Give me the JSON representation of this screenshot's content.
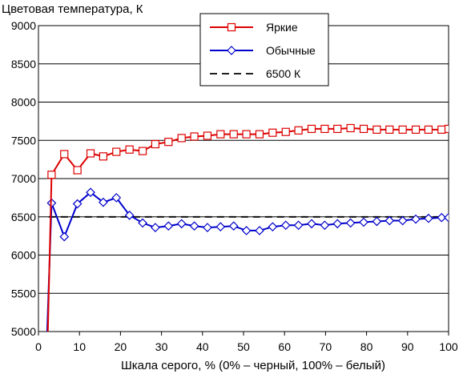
{
  "chart_data": {
    "type": "line",
    "title": "",
    "ylabel": "Цветовая температура, К",
    "xlabel": "Шкала серого, % (0% – черный, 100% – белый)",
    "xlim": [
      0,
      100
    ],
    "ylim": [
      5000,
      9000
    ],
    "x_ticks": [
      0,
      10,
      20,
      30,
      40,
      50,
      60,
      70,
      80,
      90,
      100
    ],
    "y_ticks": [
      5000,
      5500,
      6000,
      6500,
      7000,
      7500,
      8000,
      8500,
      9000
    ],
    "grid": "horizontal",
    "legend_position": "top-center",
    "series": [
      {
        "name": "Яркие",
        "color": "#dd0000",
        "marker": "square",
        "points": [
          [
            2.2,
            4800
          ],
          [
            3.2,
            7050
          ],
          [
            6.3,
            7320
          ],
          [
            9.5,
            7110
          ],
          [
            12.7,
            7330
          ],
          [
            15.8,
            7290
          ],
          [
            19.0,
            7350
          ],
          [
            22.2,
            7380
          ],
          [
            25.4,
            7360
          ],
          [
            28.5,
            7450
          ],
          [
            31.7,
            7480
          ],
          [
            34.9,
            7530
          ],
          [
            38.0,
            7550
          ],
          [
            41.2,
            7560
          ],
          [
            44.4,
            7580
          ],
          [
            47.6,
            7580
          ],
          [
            50.7,
            7580
          ],
          [
            53.9,
            7580
          ],
          [
            57.1,
            7600
          ],
          [
            60.3,
            7610
          ],
          [
            63.4,
            7630
          ],
          [
            66.6,
            7650
          ],
          [
            69.8,
            7650
          ],
          [
            72.9,
            7650
          ],
          [
            76.1,
            7660
          ],
          [
            79.3,
            7650
          ],
          [
            82.5,
            7640
          ],
          [
            85.6,
            7640
          ],
          [
            88.8,
            7640
          ],
          [
            92.0,
            7640
          ],
          [
            95.1,
            7640
          ],
          [
            98.3,
            7640
          ],
          [
            100,
            7650
          ]
        ]
      },
      {
        "name": "Обычные",
        "color": "#0000cc",
        "marker": "diamond",
        "points": [
          [
            2.0,
            4800
          ],
          [
            3.2,
            6680
          ],
          [
            6.3,
            6240
          ],
          [
            9.5,
            6670
          ],
          [
            12.7,
            6820
          ],
          [
            15.8,
            6690
          ],
          [
            19.0,
            6750
          ],
          [
            22.2,
            6520
          ],
          [
            25.4,
            6420
          ],
          [
            28.5,
            6360
          ],
          [
            31.7,
            6380
          ],
          [
            34.9,
            6410
          ],
          [
            38.0,
            6380
          ],
          [
            41.2,
            6360
          ],
          [
            44.4,
            6370
          ],
          [
            47.6,
            6380
          ],
          [
            50.7,
            6320
          ],
          [
            53.9,
            6320
          ],
          [
            57.1,
            6370
          ],
          [
            60.3,
            6390
          ],
          [
            63.4,
            6390
          ],
          [
            66.6,
            6410
          ],
          [
            69.8,
            6390
          ],
          [
            72.9,
            6410
          ],
          [
            76.1,
            6420
          ],
          [
            79.3,
            6430
          ],
          [
            82.5,
            6440
          ],
          [
            85.6,
            6450
          ],
          [
            88.8,
            6450
          ],
          [
            92.0,
            6470
          ],
          [
            95.1,
            6480
          ],
          [
            98.3,
            6490
          ],
          [
            100,
            6490
          ]
        ]
      },
      {
        "name": "6500 К",
        "color": "#000000",
        "marker": "none",
        "line_style": "dashed",
        "points": [
          [
            2.5,
            6500
          ],
          [
            100,
            6500
          ]
        ]
      }
    ]
  }
}
